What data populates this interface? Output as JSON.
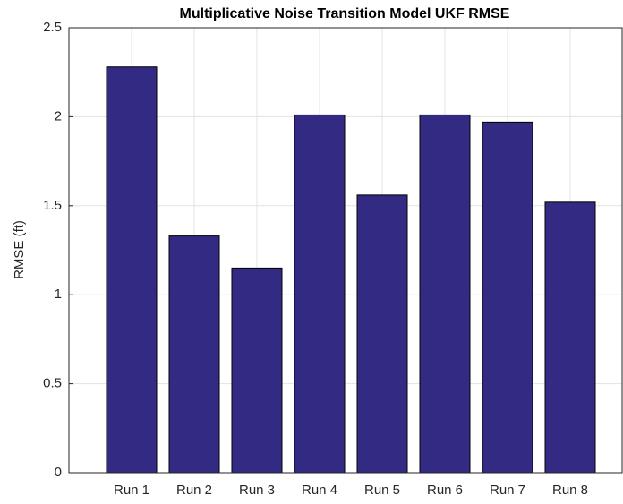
{
  "chart_data": {
    "type": "bar",
    "title": "Multiplicative Noise Transition Model UKF RMSE",
    "y_label": "RMSE (ft)",
    "categories": [
      "Run 1",
      "Run 2",
      "Run 3",
      "Run 4",
      "Run 5",
      "Run 6",
      "Run 7",
      "Run 8"
    ],
    "values": [
      2.28,
      1.33,
      1.15,
      2.01,
      1.56,
      2.01,
      1.97,
      1.52
    ],
    "color": "#332a84",
    "ylim": [
      0,
      2.5
    ],
    "yticks": [
      0,
      0.5,
      1,
      1.5,
      2,
      2.5
    ],
    "grid": true
  }
}
